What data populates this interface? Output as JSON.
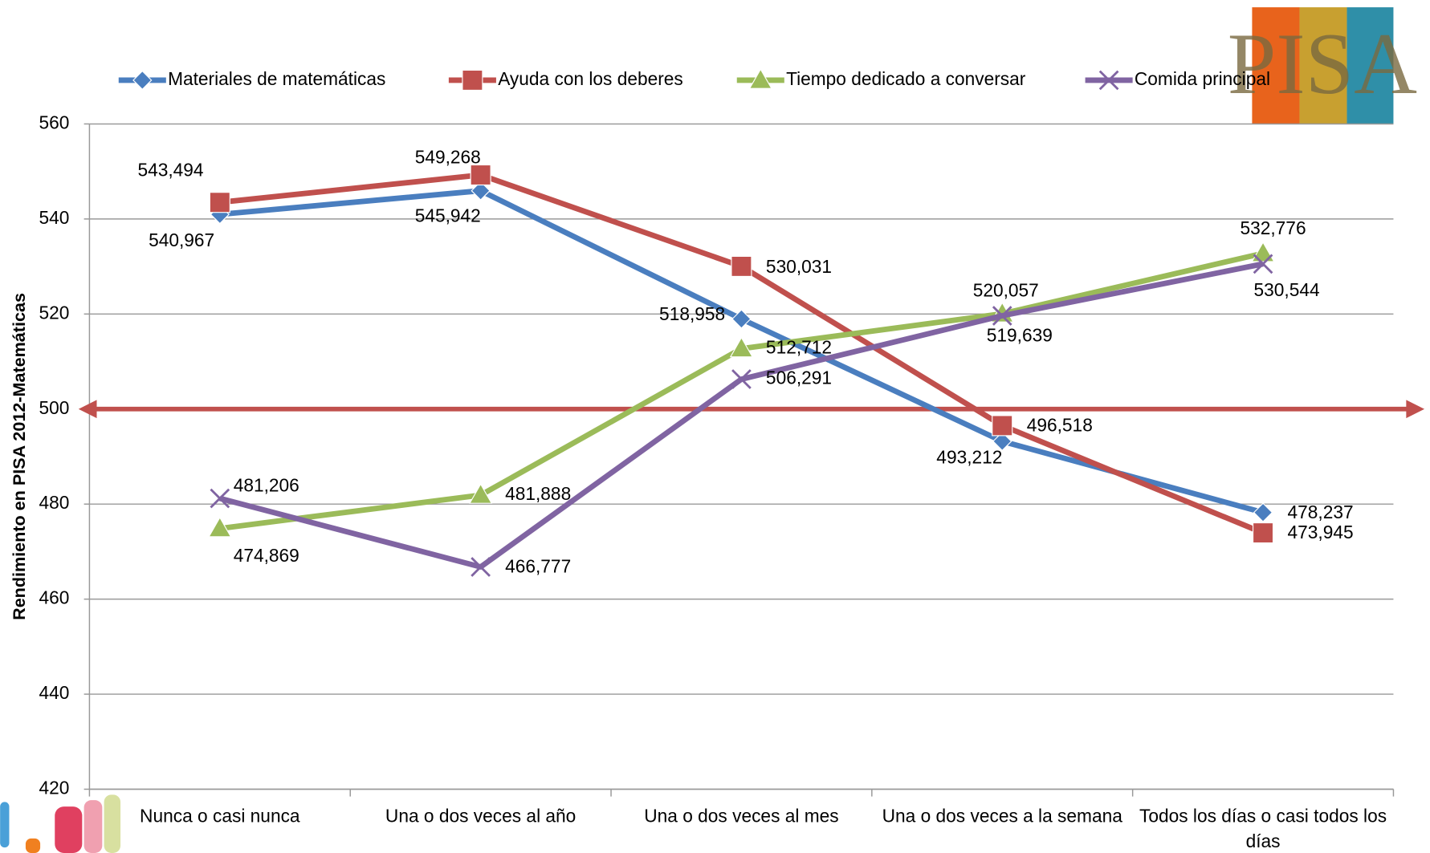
{
  "chart_data": {
    "type": "line",
    "y_axis_label": "Rendimiento en PISA 2012-Matemáticas",
    "logo_text": "PISA",
    "categories": [
      "Nunca o casi nunca",
      "Una o dos veces al año",
      "Una o dos veces al mes",
      "Una o dos veces a la semana",
      "Todos los días o casi todos los días"
    ],
    "series": [
      {
        "name": "Materiales de matemáticas",
        "color": "#4a7ebf",
        "marker": "diamond",
        "values": [
          540.967,
          545.942,
          518.958,
          493.212,
          478.237
        ],
        "value_labels": [
          "540,967",
          "545,942",
          "518,958",
          "493,212",
          "478,237"
        ]
      },
      {
        "name": "Ayuda con los deberes",
        "color": "#c0504d",
        "marker": "square",
        "values": [
          543.494,
          549.268,
          530.031,
          496.518,
          473.945
        ],
        "value_labels": [
          "543,494",
          "549,268",
          "530,031",
          "496,518",
          "473,945"
        ]
      },
      {
        "name": "Tiempo dedicado a conversar",
        "color": "#9bbb59",
        "marker": "triangle",
        "values": [
          474.869,
          481.888,
          512.712,
          520.057,
          532.776
        ],
        "value_labels": [
          "474,869",
          "481,888",
          "512,712",
          "520,057",
          "532,776"
        ]
      },
      {
        "name": "Comida principal",
        "color": "#8064a2",
        "marker": "x",
        "values": [
          481.206,
          466.777,
          506.291,
          519.639,
          530.544
        ],
        "value_labels": [
          "481,206",
          "466,777",
          "506,291",
          "519,639",
          "530,544"
        ]
      }
    ],
    "reference_line": 500,
    "reference_color": "#c0504d",
    "ylim": [
      420,
      560
    ],
    "yticks": [
      420,
      440,
      460,
      480,
      500,
      520,
      540,
      560
    ],
    "grid": true,
    "legend": "top"
  }
}
